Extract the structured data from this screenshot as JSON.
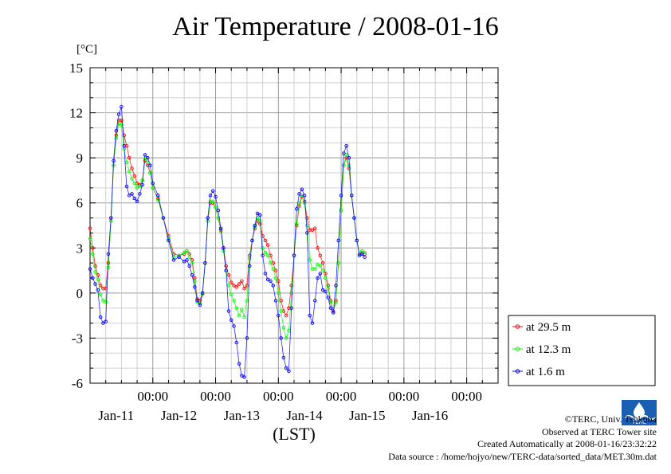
{
  "title": "Air Temperature / 2008-01-16",
  "unit_label": "[°C]",
  "xlabel": "(LST)",
  "credits": {
    "copyright": "©TERC, Univ. Tsukuba",
    "observed": "Observed at TERC Tower site",
    "created": "Created Automatically at 2008-01-16/23:32:22",
    "source": "Data source : /home/hojyo/new/TERC-data/sorted_data/MET.30m.dat"
  },
  "logo_text": "TERC",
  "chart_data": {
    "type": "line",
    "title": "Air Temperature / 2008-01-16",
    "ylabel": "[°C]",
    "xlabel": "(LST)",
    "ylim": [
      -6,
      15
    ],
    "yticks": [
      -6,
      -3,
      0,
      3,
      6,
      9,
      12,
      15
    ],
    "xlim_hours": [
      -12,
      144
    ],
    "xticks": [
      {
        "h": 12,
        "top": "00:00",
        "bottom": "Jan-11"
      },
      {
        "h": 36,
        "top": "00:00",
        "bottom": "Jan-12"
      },
      {
        "h": 60,
        "top": "00:00",
        "bottom": "Jan-13"
      },
      {
        "h": 84,
        "top": "00:00",
        "bottom": "Jan-14"
      },
      {
        "h": 108,
        "top": "00:00",
        "bottom": "Jan-15"
      },
      {
        "h": 132,
        "top": "00:00",
        "bottom": "Jan-16"
      }
    ],
    "grid": true,
    "legend_position": "right, outside",
    "series": [
      {
        "name": "at 29.5 m",
        "color": "#ff0000",
        "points": [
          [
            -12,
            4.3
          ],
          [
            -11,
            3
          ],
          [
            -10,
            1.8
          ],
          [
            -9,
            1.2
          ],
          [
            -8,
            0.5
          ],
          [
            -7,
            0.3
          ],
          [
            -6,
            0.3
          ],
          [
            -5,
            2
          ],
          [
            -4,
            5
          ],
          [
            -3,
            8.5
          ],
          [
            -2,
            10.5
          ],
          [
            -1,
            11.5
          ],
          [
            0,
            11.5
          ],
          [
            1,
            10.5
          ],
          [
            2,
            9.8
          ],
          [
            3,
            9
          ],
          [
            4,
            8.3
          ],
          [
            5,
            7.8
          ],
          [
            6,
            7.3
          ],
          [
            7,
            7.2
          ],
          [
            8,
            7.5
          ],
          [
            9,
            8.8
          ],
          [
            10,
            8.5
          ],
          [
            11,
            8
          ],
          [
            12,
            7
          ],
          [
            14,
            6.3
          ],
          [
            16,
            5
          ],
          [
            18,
            3.8
          ],
          [
            20,
            2.6
          ],
          [
            22,
            2.5
          ],
          [
            24,
            2.6
          ],
          [
            25,
            2.8
          ],
          [
            26,
            2.6
          ],
          [
            27,
            2.2
          ],
          [
            28,
            1
          ],
          [
            29,
            -0.4
          ],
          [
            30,
            -0.5
          ],
          [
            31,
            0
          ],
          [
            32,
            2
          ],
          [
            33,
            4.8
          ],
          [
            34,
            6
          ],
          [
            35,
            6
          ],
          [
            36,
            5.7
          ],
          [
            37,
            5
          ],
          [
            38,
            4.2
          ],
          [
            39,
            3
          ],
          [
            40,
            1.8
          ],
          [
            41,
            1.2
          ],
          [
            42,
            0.7
          ],
          [
            43,
            0.5
          ],
          [
            44,
            0.4
          ],
          [
            45,
            0.6
          ],
          [
            46,
            0.8
          ],
          [
            47,
            0.3
          ],
          [
            48,
            0.5
          ],
          [
            49,
            2.5
          ],
          [
            50,
            3.5
          ],
          [
            51,
            4.3
          ],
          [
            52,
            4.8
          ],
          [
            53,
            4.6
          ],
          [
            54,
            3.8
          ],
          [
            55,
            3.5
          ],
          [
            56,
            3.2
          ],
          [
            57,
            2.5
          ],
          [
            58,
            2
          ],
          [
            59,
            1.5
          ],
          [
            60,
            0.8
          ],
          [
            61,
            -0.5
          ],
          [
            62,
            -1.2
          ],
          [
            63,
            -1.5
          ],
          [
            64,
            -1
          ],
          [
            65,
            0.5
          ],
          [
            66,
            2.5
          ],
          [
            67,
            4.5
          ],
          [
            68,
            5.8
          ],
          [
            69,
            6.4
          ],
          [
            70,
            6.1
          ],
          [
            71,
            5
          ],
          [
            72,
            4.2
          ],
          [
            73,
            4.2
          ],
          [
            74,
            4.3
          ],
          [
            75,
            3
          ],
          [
            76,
            2.5
          ],
          [
            77,
            2
          ],
          [
            78,
            1.3
          ],
          [
            79,
            0.5
          ],
          [
            80,
            -0.5
          ],
          [
            81,
            -1.2
          ],
          [
            82,
            -0.5
          ],
          [
            83,
            2
          ],
          [
            84,
            5.5
          ],
          [
            85,
            8.5
          ],
          [
            86,
            9
          ],
          [
            87,
            8.3
          ],
          [
            88,
            6.5
          ],
          [
            89,
            5
          ],
          [
            90,
            3.5
          ],
          [
            91,
            2.6
          ],
          [
            92,
            2.7
          ],
          [
            93,
            2.6
          ]
        ]
      },
      {
        "name": "at 12.3 m",
        "color": "#00ff00",
        "points": [
          [
            -12,
            3.6
          ],
          [
            -11,
            2.6
          ],
          [
            -10,
            1.4
          ],
          [
            -9,
            0.9
          ],
          [
            -8,
            -0.1
          ],
          [
            -7,
            -0.5
          ],
          [
            -6,
            -0.6
          ],
          [
            -5,
            1.7
          ],
          [
            -4,
            4.8
          ],
          [
            -3,
            8.5
          ],
          [
            -2,
            10.3
          ],
          [
            -1,
            11.3
          ],
          [
            0,
            11.2
          ],
          [
            1,
            9.6
          ],
          [
            2,
            8.7
          ],
          [
            3,
            8.1
          ],
          [
            4,
            7.6
          ],
          [
            5,
            7.3
          ],
          [
            6,
            7
          ],
          [
            7,
            7.1
          ],
          [
            8,
            7.5
          ],
          [
            9,
            8.9
          ],
          [
            10,
            8.7
          ],
          [
            11,
            8
          ],
          [
            12,
            7
          ],
          [
            14,
            6.2
          ],
          [
            16,
            5
          ],
          [
            18,
            3.6
          ],
          [
            20,
            2.4
          ],
          [
            22,
            2.5
          ],
          [
            24,
            2.7
          ],
          [
            25,
            2.8
          ],
          [
            26,
            2.4
          ],
          [
            27,
            2
          ],
          [
            28,
            0.8
          ],
          [
            29,
            -0.6
          ],
          [
            30,
            -0.7
          ],
          [
            31,
            -0.1
          ],
          [
            32,
            2
          ],
          [
            33,
            4.8
          ],
          [
            34,
            6.1
          ],
          [
            35,
            6.1
          ],
          [
            36,
            5.7
          ],
          [
            37,
            5
          ],
          [
            38,
            4.1
          ],
          [
            39,
            2.8
          ],
          [
            40,
            1.5
          ],
          [
            41,
            0.5
          ],
          [
            42,
            -0.1
          ],
          [
            43,
            -0.5
          ],
          [
            44,
            -1
          ],
          [
            45,
            -1.5
          ],
          [
            46,
            -1.1
          ],
          [
            47,
            -1.6
          ],
          [
            48,
            -0.5
          ],
          [
            49,
            2.3
          ],
          [
            50,
            3.5
          ],
          [
            51,
            4.4
          ],
          [
            52,
            5
          ],
          [
            53,
            4.8
          ],
          [
            54,
            3
          ],
          [
            55,
            2.7
          ],
          [
            56,
            2.5
          ],
          [
            57,
            2
          ],
          [
            58,
            1.6
          ],
          [
            59,
            1
          ],
          [
            60,
            0
          ],
          [
            61,
            -1.2
          ],
          [
            62,
            -2.3
          ],
          [
            63,
            -3
          ],
          [
            64,
            -2.5
          ],
          [
            65,
            0
          ],
          [
            66,
            2.5
          ],
          [
            67,
            4.6
          ],
          [
            68,
            6
          ],
          [
            69,
            6.5
          ],
          [
            70,
            6
          ],
          [
            71,
            4.5
          ],
          [
            72,
            2.2
          ],
          [
            73,
            1.6
          ],
          [
            74,
            1.6
          ],
          [
            75,
            1.9
          ],
          [
            76,
            1.8
          ],
          [
            77,
            1.5
          ],
          [
            78,
            1
          ],
          [
            79,
            0.3
          ],
          [
            80,
            -0.6
          ],
          [
            81,
            -1.3
          ],
          [
            82,
            -0.6
          ],
          [
            83,
            2
          ],
          [
            84,
            5.5
          ],
          [
            85,
            8.5
          ],
          [
            86,
            9.2
          ],
          [
            87,
            8.5
          ],
          [
            88,
            6.5
          ],
          [
            89,
            5
          ],
          [
            90,
            3.5
          ],
          [
            91,
            2.6
          ],
          [
            92,
            2.8
          ],
          [
            93,
            2.7
          ]
        ]
      },
      {
        "name": "at 1.6 m",
        "color": "#0000ff",
        "points": [
          [
            -12,
            1.6
          ],
          [
            -11,
            1
          ],
          [
            -10,
            0.6
          ],
          [
            -9,
            0.2
          ],
          [
            -8,
            -1.6
          ],
          [
            -7,
            -2
          ],
          [
            -6,
            -1.9
          ],
          [
            -5,
            2.6
          ],
          [
            -4,
            5
          ],
          [
            -3,
            8.8
          ],
          [
            -2,
            10.8
          ],
          [
            -1,
            11.9
          ],
          [
            0,
            12.4
          ],
          [
            1,
            9.8
          ],
          [
            2,
            7.1
          ],
          [
            3,
            6.5
          ],
          [
            4,
            6.6
          ],
          [
            5,
            6.3
          ],
          [
            6,
            6.1
          ],
          [
            7,
            6.6
          ],
          [
            8,
            7.2
          ],
          [
            9,
            9.2
          ],
          [
            10,
            9
          ],
          [
            11,
            8.5
          ],
          [
            12,
            7.3
          ],
          [
            14,
            6.5
          ],
          [
            16,
            5
          ],
          [
            18,
            3.5
          ],
          [
            20,
            2.2
          ],
          [
            22,
            2.4
          ],
          [
            24,
            2.1
          ],
          [
            25,
            2.2
          ],
          [
            26,
            1.8
          ],
          [
            27,
            1.2
          ],
          [
            28,
            0.4
          ],
          [
            29,
            -0.5
          ],
          [
            30,
            -0.8
          ],
          [
            31,
            0
          ],
          [
            32,
            2
          ],
          [
            33,
            5
          ],
          [
            34,
            6.5
          ],
          [
            35,
            6.8
          ],
          [
            36,
            6.4
          ],
          [
            37,
            5.5
          ],
          [
            38,
            4.3
          ],
          [
            39,
            3
          ],
          [
            40,
            1.5
          ],
          [
            41,
            -1.2
          ],
          [
            42,
            -1.8
          ],
          [
            43,
            -2.2
          ],
          [
            44,
            -3.3
          ],
          [
            45,
            -4.7
          ],
          [
            46,
            -5.5
          ],
          [
            47,
            -5.6
          ],
          [
            48,
            -3
          ],
          [
            49,
            1.8
          ],
          [
            50,
            3.5
          ],
          [
            51,
            4.5
          ],
          [
            52,
            5.3
          ],
          [
            53,
            5.2
          ],
          [
            54,
            2.5
          ],
          [
            55,
            1.3
          ],
          [
            56,
            0.9
          ],
          [
            57,
            0.8
          ],
          [
            58,
            0.5
          ],
          [
            59,
            -0.5
          ],
          [
            60,
            -1.5
          ],
          [
            61,
            -3
          ],
          [
            62,
            -4.3
          ],
          [
            63,
            -5
          ],
          [
            64,
            -5.2
          ],
          [
            65,
            -1
          ],
          [
            66,
            2.5
          ],
          [
            67,
            5.6
          ],
          [
            68,
            6.6
          ],
          [
            69,
            6.9
          ],
          [
            70,
            6.5
          ],
          [
            71,
            4
          ],
          [
            72,
            -1.5
          ],
          [
            73,
            -2
          ],
          [
            74,
            -0.5
          ],
          [
            75,
            1
          ],
          [
            76,
            1.3
          ],
          [
            77,
            0.2
          ],
          [
            78,
            0.1
          ],
          [
            79,
            -0.3
          ],
          [
            80,
            -1
          ],
          [
            81,
            -1.3
          ],
          [
            82,
            0.5
          ],
          [
            83,
            3.5
          ],
          [
            84,
            6.5
          ],
          [
            85,
            9.3
          ],
          [
            86,
            9.8
          ],
          [
            87,
            9
          ],
          [
            88,
            6.5
          ],
          [
            89,
            5
          ],
          [
            90,
            3.5
          ],
          [
            91,
            2.5
          ],
          [
            92,
            2.6
          ],
          [
            93,
            2.4
          ]
        ]
      }
    ]
  }
}
